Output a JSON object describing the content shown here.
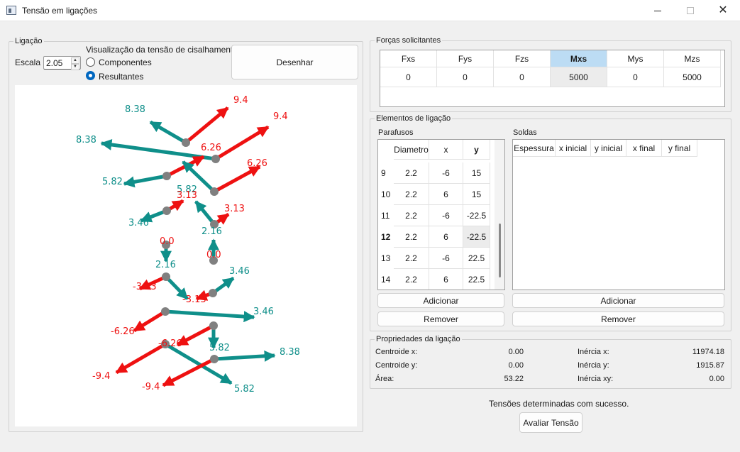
{
  "window": {
    "title": "Tensão em ligações"
  },
  "ligacao": {
    "title": "Ligação",
    "escala_label": "Escala",
    "escala_value": "2.05",
    "visualizacao_label": "Visualização da tensão de cisalhamento:",
    "opt_componentes": "Componentes",
    "opt_resultantes": "Resultantes",
    "selected": "Resultantes",
    "desenhar": "Desenhar"
  },
  "forcas": {
    "title": "Forças solicitantes",
    "headers": [
      "Fxs",
      "Fys",
      "Fzs",
      "Mxs",
      "Mys",
      "Mzs"
    ],
    "values": [
      "0",
      "0",
      "0",
      "5000",
      "0",
      "5000"
    ],
    "selected_column": "Mxs"
  },
  "elementos": {
    "title": "Elementos de ligação",
    "parafusos": {
      "title": "Parafusos",
      "headers": [
        "Diametro",
        "x",
        "y"
      ],
      "rows": [
        {
          "id": "9",
          "d": "2.2",
          "x": "-6",
          "y": "15"
        },
        {
          "id": "10",
          "d": "2.2",
          "x": "6",
          "y": "15"
        },
        {
          "id": "11",
          "d": "2.2",
          "x": "-6",
          "y": "-22.5"
        },
        {
          "id": "12",
          "d": "2.2",
          "x": "6",
          "y": "-22.5"
        },
        {
          "id": "13",
          "d": "2.2",
          "x": "-6",
          "y": "22.5"
        },
        {
          "id": "14",
          "d": "2.2",
          "x": "6",
          "y": "22.5"
        }
      ],
      "adicionar": "Adicionar",
      "remover": "Remover"
    },
    "soldas": {
      "title": "Soldas",
      "headers": [
        "Espessura",
        "x inicial",
        "y inicial",
        "x final",
        "y final"
      ],
      "adicionar": "Adicionar",
      "remover": "Remover"
    }
  },
  "propriedades": {
    "title": "Propriedades da ligação",
    "centroide_x": {
      "label": "Centroide x:",
      "value": "0.00"
    },
    "centroide_y": {
      "label": "Centroide y:",
      "value": "0.00"
    },
    "area": {
      "label": "Área:",
      "value": "53.22"
    },
    "inercia_x": {
      "label": "Inércia x:",
      "value": "11974.18"
    },
    "inercia_y": {
      "label": "Inércia y:",
      "value": "1915.87"
    },
    "inercia_xy": {
      "label": "Inércia xy:",
      "value": "0.00"
    }
  },
  "status": "Tensões determinadas com sucesso.",
  "avaliar": "Avaliar Tensão",
  "colors": {
    "teal": "#0f8f8a",
    "red": "#ee1111",
    "node": "#808080",
    "accent": "#0067c0",
    "header_selected": "#bcdcf4"
  },
  "drawing": {
    "bolts": [
      {
        "id": "b1",
        "red_label": "9.4",
        "teal_label": "8.38"
      },
      {
        "id": "b2",
        "red_label": "9.4",
        "teal_label": "8.38"
      },
      {
        "id": "b3",
        "red_label": "6.26",
        "teal_label": "5.82"
      },
      {
        "id": "b4",
        "red_label": "6.26",
        "teal_label": "5.82"
      },
      {
        "id": "b5",
        "red_label": "3.13",
        "teal_label": "3.46"
      },
      {
        "id": "b6",
        "red_label": "3.13",
        "teal_label": "2.16"
      },
      {
        "id": "b7",
        "red_label": "0.0",
        "teal_label": "2.16"
      },
      {
        "id": "b8",
        "red_label": "0.0",
        "teal_label": "2.16"
      },
      {
        "id": "b9",
        "red_label": "-3.13",
        "teal_label": "2.16"
      },
      {
        "id": "b10",
        "red_label": "-3.13",
        "teal_label": "3.46"
      },
      {
        "id": "b11",
        "red_label": "-6.26",
        "teal_label": "3.46"
      },
      {
        "id": "b12",
        "red_label": "-6.26",
        "teal_label": "5.82"
      },
      {
        "id": "b13",
        "red_label": "-9.4",
        "teal_label": "5.82"
      },
      {
        "id": "b14",
        "red_label": "-9.4",
        "teal_label": "8.38"
      }
    ]
  }
}
